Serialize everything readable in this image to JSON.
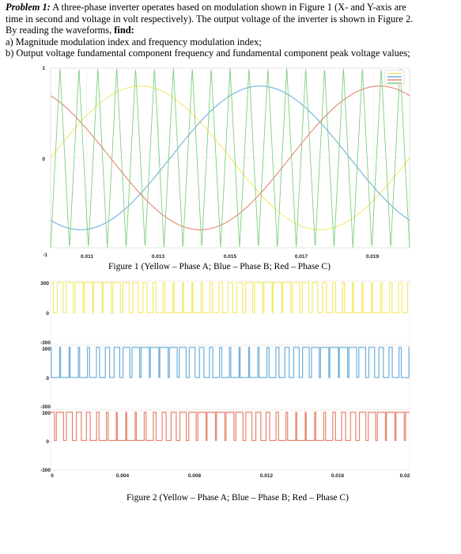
{
  "problem": {
    "lead": "Problem 1:",
    "line1_rest": " A three-phase inverter operates based on modulation shown in Figure 1 (X- and Y-axis are",
    "line2": "time in second and voltage in volt respectively). The output voltage of the inverter is shown in Figure 2.",
    "line3_prefix": "By reading the waveforms, ",
    "line3_bold": "find:",
    "item_a": "a) Magnitude modulation index and frequency modulation index;",
    "item_b": "b) Output voltage fundamental component frequency and fundamental component peak voltage values;"
  },
  "figure1": {
    "caption": "Figure 1 (Yellow – Phase A; Blue – Phase B; Red – Phase C)",
    "y_ticks": [
      "1",
      "0",
      "-1"
    ],
    "x_ticks": [
      "0.011",
      "0.013",
      "0.015",
      "0.017",
      "0.019"
    ]
  },
  "figure2": {
    "caption": "Figure 2 (Yellow – Phase A; Blue – Phase B; Red – Phase C)",
    "panel1_ticks": [
      "300",
      "0",
      "-300"
    ],
    "panel2_ticks": [
      "300",
      "0",
      "-300"
    ],
    "panel3_ticks": [
      "300",
      "0",
      "-300"
    ],
    "x_ticks": [
      "0",
      "0.004",
      "0.008",
      "0.012",
      "0.016",
      "0.02"
    ]
  },
  "chart_data": [
    {
      "type": "line",
      "title": "Figure 1 (Yellow – Phase A; Blue – Phase B; Red – Phase C)",
      "xlabel": "",
      "ylabel": "",
      "xlim": [
        0.01,
        0.02
      ],
      "ylim": [
        -1,
        1
      ],
      "x_ticks": [
        0.011,
        0.013,
        0.015,
        0.017,
        0.019
      ],
      "y_ticks": [
        -1,
        0,
        1
      ],
      "grid": true,
      "series": [
        {
          "name": "Phase A",
          "color": "#f5e96a",
          "kind": "sine",
          "amplitude": 0.8,
          "frequency_hz": 100,
          "phase_deg": 0
        },
        {
          "name": "Phase B",
          "color": "#6fb0dc",
          "kind": "sine",
          "amplitude": 0.8,
          "frequency_hz": 100,
          "phase_deg": -120
        },
        {
          "name": "Phase C",
          "color": "#e8846e",
          "kind": "sine",
          "amplitude": 0.8,
          "frequency_hz": 100,
          "phase_deg": 120
        },
        {
          "name": "Carrier",
          "color": "#7cd07c",
          "kind": "triangle",
          "amplitude": 1,
          "frequency_hz": 1900
        }
      ]
    },
    {
      "type": "line",
      "title": "Figure 2 (Yellow – Phase A; Blue – Phase B; Red – Phase C)",
      "xlabel": "",
      "ylabel": "",
      "xlim": [
        0,
        0.02
      ],
      "x_ticks": [
        0,
        0.004,
        0.008,
        0.012,
        0.016,
        0.02
      ],
      "panels": [
        {
          "name": "Phase A",
          "color": "#f5e96a",
          "ylim": [
            -300,
            300
          ],
          "levels": [
            0,
            300
          ],
          "modulation_index": 0.8,
          "carrier_hz": 1900,
          "fundamental_hz": 100,
          "phase_deg": 0
        },
        {
          "name": "Phase B",
          "color": "#6fb0dc",
          "ylim": [
            -300,
            300
          ],
          "levels": [
            0,
            300
          ],
          "modulation_index": 0.8,
          "carrier_hz": 1900,
          "fundamental_hz": 100,
          "phase_deg": -120
        },
        {
          "name": "Phase C",
          "color": "#e8846e",
          "ylim": [
            -300,
            300
          ],
          "levels": [
            0,
            300
          ],
          "modulation_index": 0.8,
          "carrier_hz": 1900,
          "fundamental_hz": 100,
          "phase_deg": 120
        }
      ]
    }
  ]
}
